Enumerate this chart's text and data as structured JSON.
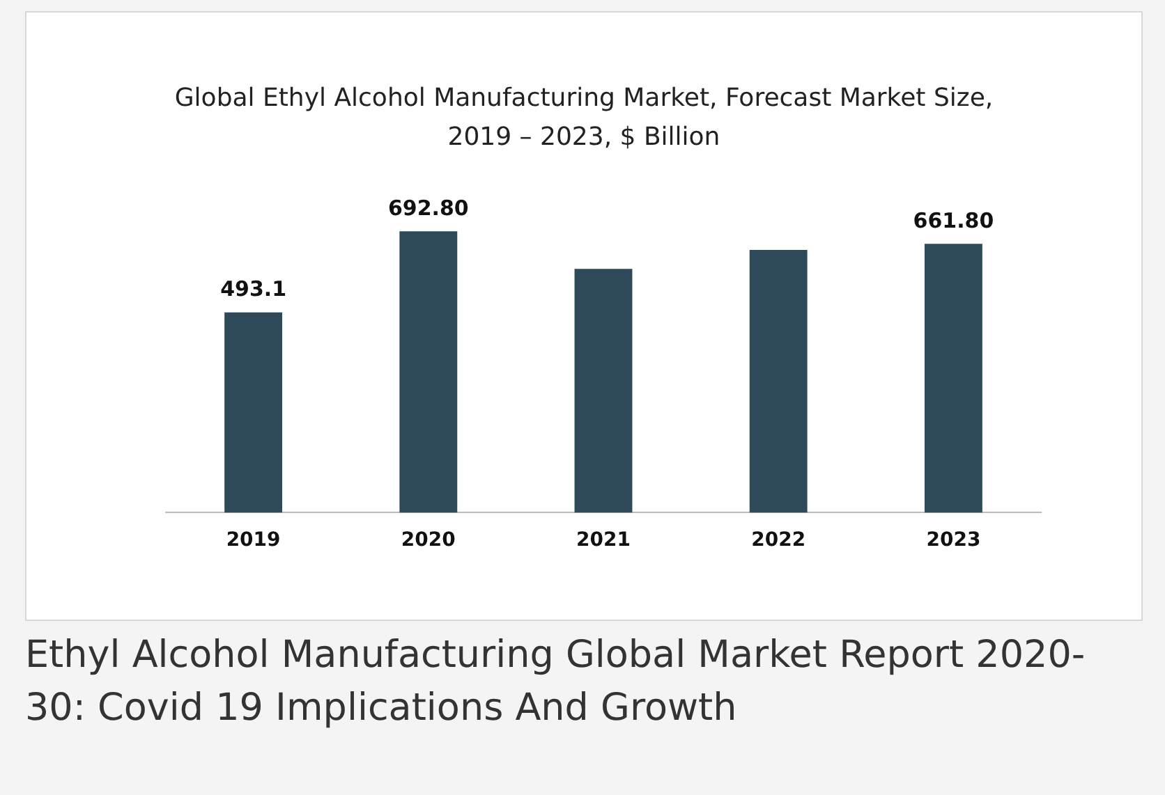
{
  "chart_data": {
    "type": "bar",
    "title": "Global Ethyl Alcohol Manufacturing Market, Forecast Market Size, 2019 – 2023, $ Billion",
    "categories": [
      "2019",
      "2020",
      "2021",
      "2022",
      "2023"
    ],
    "values": [
      493.1,
      692.8,
      600,
      647,
      661.8
    ],
    "value_labels": [
      "493.1",
      "692.80",
      null,
      null,
      "661.80"
    ],
    "color": "#2e4a5a",
    "grid": false,
    "legend": false,
    "annotations": [
      "Ethyl Alcohol Manufacturing Global Market Report 2020-30: Covid 19 Implications And Growth"
    ]
  }
}
